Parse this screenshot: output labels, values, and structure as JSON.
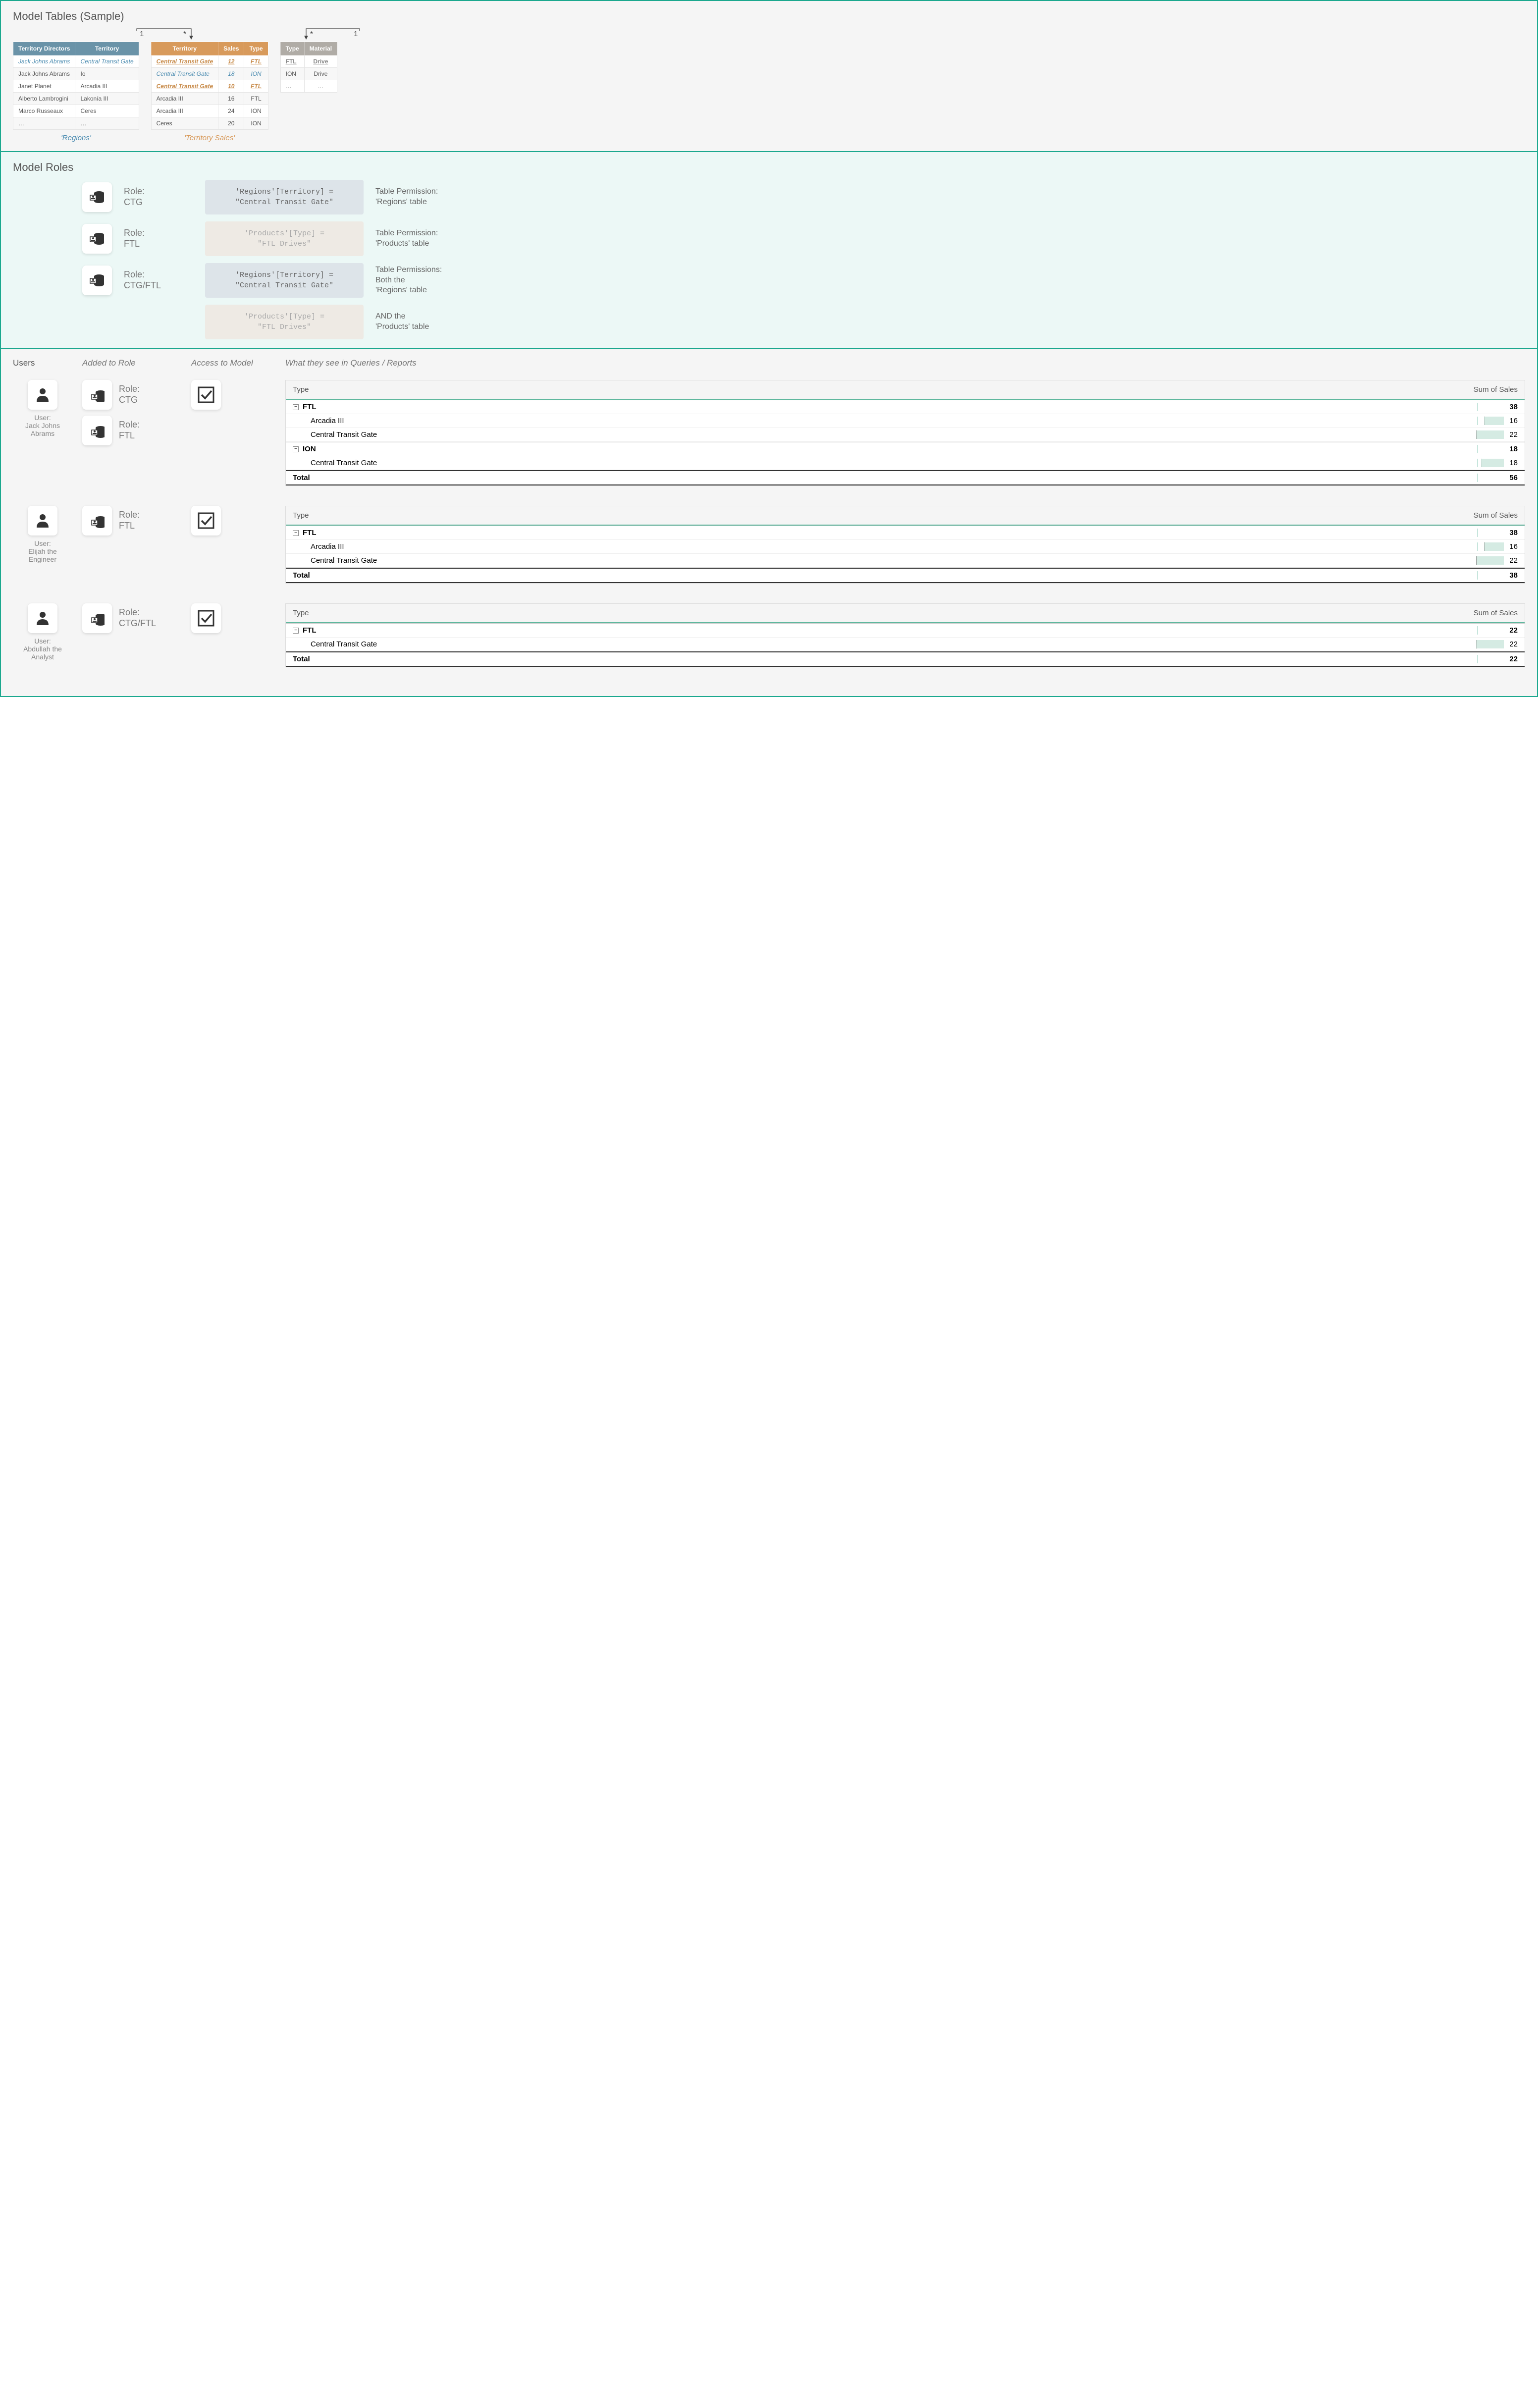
{
  "section1": {
    "title": "Model Tables (Sample)",
    "regions_label": "'Regions'",
    "sales_label": "'Territory Sales'",
    "rel": {
      "one_a": "1",
      "many_a": "*",
      "many_b": "*",
      "one_b": "1"
    },
    "regions": {
      "headers": [
        "Territory Directors",
        "Territory"
      ],
      "header_color": "#6a93a8",
      "rows": [
        {
          "cells": [
            "Jack Johns Abrams",
            "Central Transit Gate"
          ],
          "hl": "blue"
        },
        {
          "cells": [
            "Jack Johns Abrams",
            "Io"
          ]
        },
        {
          "cells": [
            "Janet Planet",
            "Arcadia III"
          ]
        },
        {
          "cells": [
            "Alberto Lambrogini",
            "Lakonía III"
          ]
        },
        {
          "cells": [
            "Marco Russeaux",
            "Ceres"
          ]
        },
        {
          "cells": [
            "…",
            "…"
          ]
        }
      ]
    },
    "sales": {
      "headers": [
        "Territory",
        "Sales",
        "Type"
      ],
      "header_color": "#d89a5b",
      "rows": [
        {
          "cells": [
            "Central Transit Gate",
            "12",
            "FTL"
          ],
          "hl": "orange"
        },
        {
          "cells": [
            "Central Transit Gate",
            "18",
            "ION"
          ],
          "hl": "blue"
        },
        {
          "cells": [
            "Central Transit Gate",
            "10",
            "FTL"
          ],
          "hl": "orange"
        },
        {
          "cells": [
            "Arcadia III",
            "16",
            "FTL"
          ]
        },
        {
          "cells": [
            "Arcadia III",
            "24",
            "ION"
          ]
        },
        {
          "cells": [
            "Ceres",
            "20",
            "ION"
          ]
        }
      ]
    },
    "products": {
      "headers": [
        "Type",
        "Material"
      ],
      "header_color": "#b0aca6",
      "rows": [
        {
          "cells": [
            "FTL",
            "Drive"
          ],
          "hl": "gray"
        },
        {
          "cells": [
            "ION",
            "Drive"
          ]
        },
        {
          "cells": [
            "…",
            "…"
          ]
        }
      ]
    }
  },
  "section2": {
    "title": "Model Roles",
    "roles": [
      {
        "name": "CTG",
        "code": "'Regions'[Territory] =\n\"Central Transit Gate\"",
        "code_style": "blue",
        "perm": "Table Permission:\n'Regions' table"
      },
      {
        "name": "FTL",
        "code": "'Products'[Type] =\n\"FTL Drives\"",
        "code_style": "tan",
        "perm": "Table Permission:\n'Products' table"
      },
      {
        "name": "CTG/FTL",
        "code": "'Regions'[Territory] =\n\"Central Transit Gate\"",
        "code_style": "blue",
        "perm": "Table Permissions:\nBoth the\n'Regions' table",
        "extra_code": "'Products'[Type] =\n\"FTL Drives\"",
        "extra_code_style": "tan",
        "extra_perm": "AND the\n'Products' table"
      }
    ],
    "role_label_prefix": "Role:"
  },
  "section3": {
    "headers": {
      "users": "Users",
      "added": "Added to Role",
      "access": "Access to Model",
      "see": "What they see in Queries / Reports"
    },
    "user_label_prefix": "User:",
    "role_label_prefix": "Role:",
    "report_headers": {
      "type": "Type",
      "sum": "Sum of Sales"
    },
    "total_label": "Total",
    "bar_color": "#d5ebe3",
    "users": [
      {
        "name": "Jack Johns\nAbrams",
        "roles": [
          "CTG",
          "FTL"
        ],
        "access": true,
        "report": {
          "groups": [
            {
              "label": "FTL",
              "total": 38,
              "rows": [
                {
                  "label": "Arcadia III",
                  "val": 16,
                  "bar": 40
                },
                {
                  "label": "Central Transit Gate",
                  "val": 22,
                  "bar": 56
                }
              ]
            },
            {
              "label": "ION",
              "total": 18,
              "rows": [
                {
                  "label": "Central Transit Gate",
                  "val": 18,
                  "bar": 46
                }
              ]
            }
          ],
          "total": 56
        }
      },
      {
        "name": "Elijah the\nEngineer",
        "roles": [
          "FTL"
        ],
        "access": true,
        "report": {
          "groups": [
            {
              "label": "FTL",
              "total": 38,
              "rows": [
                {
                  "label": "Arcadia III",
                  "val": 16,
                  "bar": 40
                },
                {
                  "label": "Central Transit Gate",
                  "val": 22,
                  "bar": 56
                }
              ]
            }
          ],
          "total": 38
        }
      },
      {
        "name": "Abdullah the\nAnalyst",
        "roles": [
          "CTG/FTL"
        ],
        "access": true,
        "report": {
          "groups": [
            {
              "label": "FTL",
              "total": 22,
              "rows": [
                {
                  "label": "Central Transit Gate",
                  "val": 22,
                  "bar": 56
                }
              ]
            }
          ],
          "total": 22
        }
      }
    ]
  }
}
